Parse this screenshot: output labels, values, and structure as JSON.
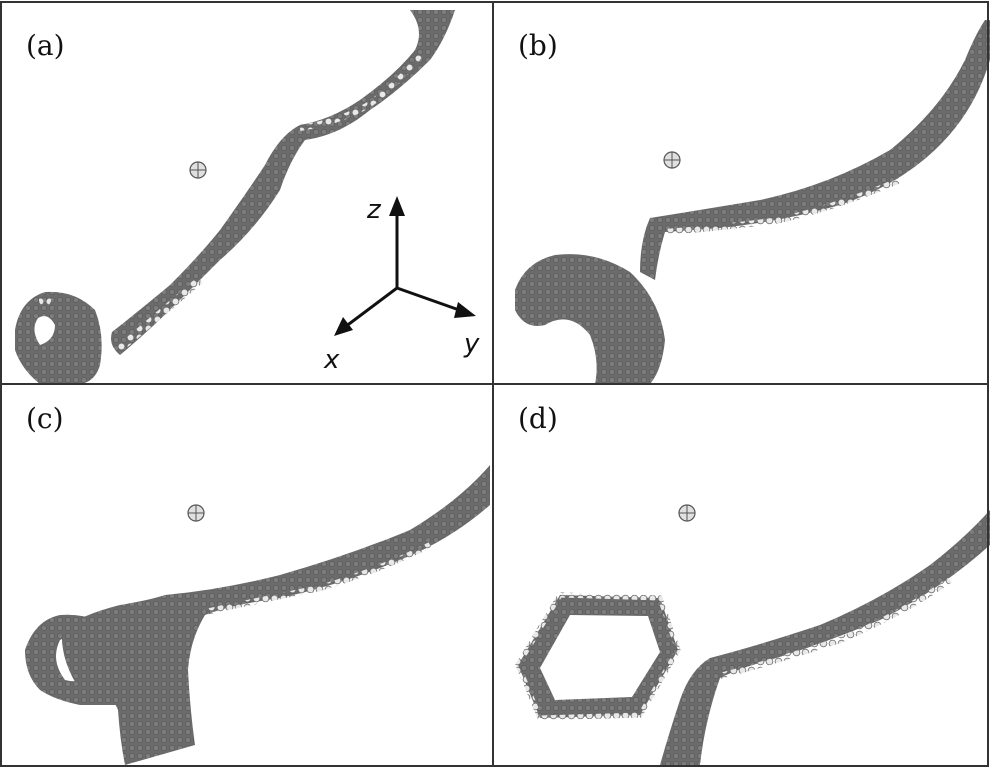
{
  "panels": [
    {
      "label": "(a)"
    },
    {
      "label": "(b)"
    },
    {
      "label": "(c)"
    },
    {
      "label": "(d)"
    }
  ],
  "axes": {
    "x": "x",
    "y": "y",
    "z": "z"
  },
  "colors": {
    "background": "#ffffff",
    "border": "#333333",
    "ribbon": "#6b6b6b",
    "atom_edge": "#d9d9d9"
  }
}
